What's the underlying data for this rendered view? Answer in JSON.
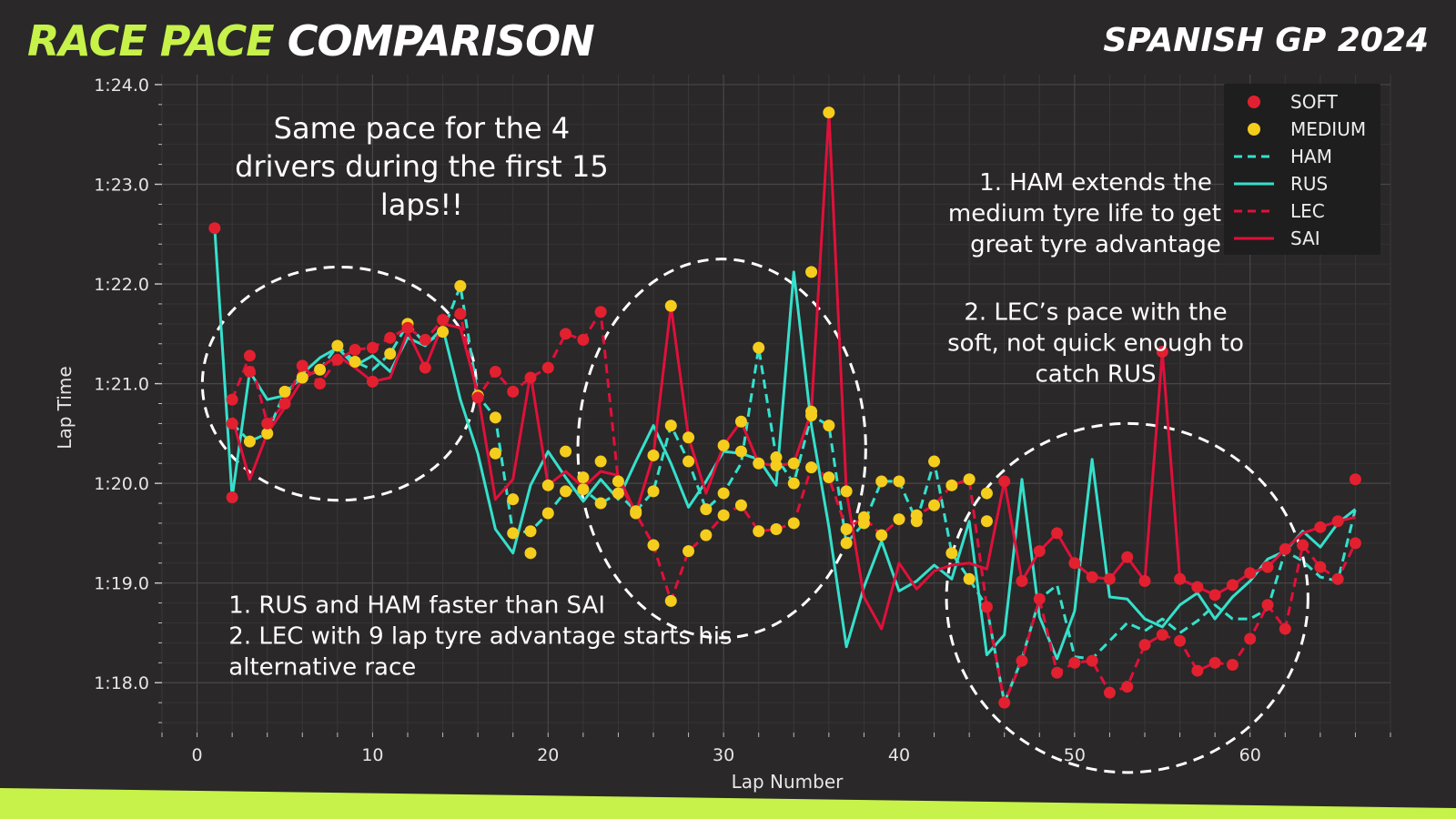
{
  "header": {
    "title_highlight": "RACE PACE",
    "title_rest": "COMPARISON",
    "subtitle": "SPANISH GP 2024"
  },
  "colors": {
    "background": "#2a2828",
    "accent": "#c6f24a",
    "soft": "#e3202f",
    "medium": "#f5cd1c",
    "mercedes": "#35e0cc",
    "ferrari": "#e0103a"
  },
  "chart_data": {
    "type": "line",
    "xlabel": "Lap Number",
    "ylabel": "Lap Time",
    "xlim": [
      -2,
      68
    ],
    "ylim": [
      77.5,
      84.1
    ],
    "xticks": [
      0,
      10,
      20,
      30,
      40,
      50,
      60
    ],
    "yticks": [
      78,
      79,
      80,
      81,
      82,
      83,
      84
    ],
    "ytick_labels": [
      "1:18.0",
      "1:19.0",
      "1:20.0",
      "1:21.0",
      "1:22.0",
      "1:23.0",
      "1:24.0"
    ],
    "grid": true,
    "legend_placement": "top-right",
    "legend": [
      {
        "label": "SOFT",
        "kind": "marker",
        "color": "#e3202f"
      },
      {
        "label": "MEDIUM",
        "kind": "marker",
        "color": "#f5cd1c"
      },
      {
        "label": "HAM",
        "kind": "dashed",
        "color": "#35e0cc"
      },
      {
        "label": "RUS",
        "kind": "solid",
        "color": "#35e0cc"
      },
      {
        "label": "LEC",
        "kind": "dashed",
        "color": "#e0103a"
      },
      {
        "label": "SAI",
        "kind": "solid",
        "color": "#e0103a"
      }
    ],
    "series": [
      {
        "name": "HAM",
        "color": "#35e0cc",
        "dash": true,
        "x": [
          2,
          3,
          4,
          5,
          6,
          7,
          8,
          9,
          10,
          11,
          12,
          13,
          14,
          15,
          16,
          17,
          18,
          19,
          20,
          21,
          22,
          23,
          24,
          25,
          26,
          27,
          28,
          29,
          30,
          31,
          32,
          33,
          34,
          35,
          36,
          37,
          38,
          39,
          40,
          41,
          42,
          43,
          44,
          45,
          46,
          47,
          48,
          49,
          50,
          51,
          52,
          53,
          54,
          55,
          56,
          57,
          58,
          59,
          60,
          61,
          62,
          63,
          64,
          65,
          66
        ],
        "y": [
          80.6,
          80.42,
          80.5,
          80.92,
          81.06,
          81.14,
          81.38,
          81.22,
          81.14,
          81.3,
          81.6,
          81.4,
          81.52,
          81.98,
          80.88,
          80.66,
          79.5,
          79.52,
          79.7,
          79.92,
          79.94,
          79.8,
          79.9,
          79.72,
          79.92,
          80.58,
          80.22,
          79.74,
          79.9,
          80.2,
          81.36,
          80.26,
          80.0,
          80.68,
          80.58,
          79.4,
          79.6,
          80.02,
          80.02,
          79.62,
          80.22,
          79.3,
          79.04,
          78.76,
          77.8,
          78.24,
          78.84,
          78.98,
          78.26,
          78.24,
          78.42,
          78.6,
          78.52,
          78.64,
          78.5,
          78.62,
          78.78,
          78.64,
          78.64,
          78.74,
          79.32,
          79.22,
          79.06,
          79.02,
          79.74
        ]
      },
      {
        "name": "RUS",
        "color": "#35e0cc",
        "dash": false,
        "x": [
          1,
          2,
          3,
          4,
          5,
          6,
          7,
          8,
          9,
          10,
          11,
          12,
          13,
          14,
          15,
          16,
          17,
          18,
          19,
          20,
          21,
          22,
          23,
          24,
          25,
          26,
          27,
          28,
          29,
          30,
          31,
          32,
          33,
          34,
          35,
          36,
          37,
          38,
          39,
          40,
          41,
          42,
          43,
          44,
          45,
          46,
          47,
          48,
          49,
          50,
          51,
          52,
          53,
          54,
          55,
          56,
          57,
          58,
          59,
          60,
          61,
          62,
          63,
          64,
          65,
          66
        ],
        "y": [
          82.56,
          79.86,
          81.12,
          80.84,
          80.88,
          81.1,
          81.26,
          81.36,
          81.18,
          81.28,
          81.12,
          81.46,
          81.38,
          81.56,
          80.84,
          80.3,
          79.54,
          79.3,
          79.98,
          80.32,
          80.06,
          79.82,
          80.04,
          79.84,
          80.22,
          80.58,
          80.2,
          79.76,
          80.02,
          80.32,
          80.3,
          80.24,
          79.98,
          82.12,
          80.58,
          79.56,
          78.36,
          78.96,
          79.42,
          78.92,
          79.02,
          79.18,
          79.04,
          79.62,
          78.28,
          78.48,
          80.04,
          78.66,
          78.24,
          78.72,
          80.24,
          78.86,
          78.84,
          78.64,
          78.56,
          78.78,
          78.9,
          78.64,
          78.86,
          79.02,
          79.24,
          79.32,
          79.52,
          79.36,
          79.6,
          79.74
        ]
      },
      {
        "name": "LEC",
        "color": "#e0103a",
        "dash": true,
        "x": [
          2,
          3,
          4,
          5,
          6,
          7,
          8,
          9,
          10,
          11,
          12,
          13,
          14,
          15,
          16,
          17,
          18,
          19,
          20,
          21,
          22,
          23,
          24,
          25,
          26,
          27,
          28,
          29,
          30,
          31,
          32,
          33,
          34,
          35,
          36,
          37,
          38,
          39,
          40,
          41,
          42,
          43,
          44,
          45,
          46,
          47,
          48,
          49,
          50,
          51,
          52,
          53,
          54,
          55,
          56,
          57,
          58,
          59,
          60,
          61,
          62,
          63,
          64,
          65,
          66
        ],
        "y": [
          80.84,
          81.28,
          80.6,
          80.8,
          81.18,
          81.0,
          81.24,
          81.34,
          81.36,
          81.46,
          81.56,
          81.44,
          81.64,
          81.7,
          80.86,
          81.12,
          80.92,
          81.06,
          81.16,
          81.5,
          81.44,
          81.72,
          80.02,
          79.7,
          79.38,
          78.82,
          79.32,
          79.48,
          79.68,
          79.78,
          79.52,
          79.54,
          79.6,
          80.16,
          80.06,
          79.54,
          79.66,
          79.48,
          79.64,
          79.68,
          79.78,
          79.98,
          80.04,
          78.76,
          77.8,
          78.22,
          78.84,
          78.1,
          78.2,
          78.22,
          77.9,
          77.96,
          78.38,
          78.48,
          78.42,
          78.12,
          78.2,
          78.18,
          78.44,
          78.78,
          78.54,
          79.38,
          79.16,
          79.04,
          79.4
        ]
      },
      {
        "name": "SAI",
        "color": "#e0103a",
        "dash": false,
        "x": [
          2,
          3,
          4,
          5,
          6,
          7,
          8,
          9,
          10,
          11,
          12,
          13,
          14,
          15,
          16,
          17,
          18,
          19,
          20,
          21,
          22,
          23,
          24,
          25,
          26,
          27,
          28,
          29,
          30,
          31,
          32,
          33,
          34,
          35,
          36,
          37,
          38,
          39,
          40,
          41,
          42,
          43,
          44,
          45,
          46,
          47,
          48,
          49,
          50,
          51,
          52,
          53,
          54,
          55,
          56,
          57,
          58,
          59,
          60,
          61,
          62,
          63,
          64,
          65,
          66
        ],
        "y": [
          80.66,
          80.04,
          80.5,
          80.76,
          81.04,
          81.16,
          81.28,
          81.16,
          81.02,
          81.06,
          81.52,
          81.16,
          81.6,
          81.56,
          80.9,
          79.84,
          80.04,
          81.1,
          79.98,
          80.12,
          79.96,
          80.12,
          80.08,
          79.7,
          80.28,
          81.78,
          80.46,
          79.9,
          80.38,
          80.62,
          80.2,
          80.18,
          80.2,
          80.72,
          83.72,
          79.92,
          78.86,
          78.54,
          79.2,
          78.94,
          79.12,
          79.18,
          79.2,
          79.14,
          80.02,
          79.02,
          79.32,
          79.5,
          79.2,
          79.06,
          79.04,
          79.26,
          79.02,
          81.32,
          79.04,
          78.96,
          78.88,
          78.98,
          79.1,
          79.16,
          79.34,
          79.5,
          79.56,
          79.62,
          79.66
        ]
      }
    ],
    "soft_points": [
      [
        1,
        82.56
      ],
      [
        2,
        79.86
      ],
      [
        2,
        80.84
      ],
      [
        2,
        80.6
      ],
      [
        3,
        81.28
      ],
      [
        3,
        81.12
      ],
      [
        4,
        80.6
      ],
      [
        5,
        80.8
      ],
      [
        6,
        81.18
      ],
      [
        7,
        81.0
      ],
      [
        8,
        81.24
      ],
      [
        9,
        81.34
      ],
      [
        10,
        81.36
      ],
      [
        10,
        81.02
      ],
      [
        11,
        81.46
      ],
      [
        12,
        81.56
      ],
      [
        13,
        81.44
      ],
      [
        13,
        81.16
      ],
      [
        14,
        81.64
      ],
      [
        15,
        81.7
      ],
      [
        16,
        80.86
      ],
      [
        17,
        81.12
      ],
      [
        18,
        80.92
      ],
      [
        19,
        81.06
      ],
      [
        20,
        81.16
      ],
      [
        21,
        81.5
      ],
      [
        22,
        81.44
      ],
      [
        23,
        81.72
      ],
      [
        45,
        78.76
      ],
      [
        46,
        77.8
      ],
      [
        46,
        80.02
      ],
      [
        47,
        78.22
      ],
      [
        47,
        79.02
      ],
      [
        48,
        78.84
      ],
      [
        48,
        79.32
      ],
      [
        49,
        78.1
      ],
      [
        49,
        79.5
      ],
      [
        50,
        78.2
      ],
      [
        50,
        79.2
      ],
      [
        51,
        78.22
      ],
      [
        51,
        79.06
      ],
      [
        52,
        77.9
      ],
      [
        52,
        79.04
      ],
      [
        53,
        77.96
      ],
      [
        53,
        79.26
      ],
      [
        54,
        78.38
      ],
      [
        54,
        79.02
      ],
      [
        55,
        78.48
      ],
      [
        55,
        81.32
      ],
      [
        56,
        78.42
      ],
      [
        56,
        79.04
      ],
      [
        57,
        78.12
      ],
      [
        57,
        78.96
      ],
      [
        58,
        78.2
      ],
      [
        58,
        78.88
      ],
      [
        59,
        78.18
      ],
      [
        59,
        78.98
      ],
      [
        60,
        78.44
      ],
      [
        60,
        79.1
      ],
      [
        61,
        78.78
      ],
      [
        61,
        79.16
      ],
      [
        62,
        78.54
      ],
      [
        62,
        79.34
      ],
      [
        63,
        79.38
      ],
      [
        64,
        79.16
      ],
      [
        64,
        79.56
      ],
      [
        65,
        79.04
      ],
      [
        65,
        79.62
      ],
      [
        66,
        79.4
      ],
      [
        66,
        80.04
      ]
    ],
    "medium_points": [
      [
        3,
        80.42
      ],
      [
        4,
        80.5
      ],
      [
        5,
        80.92
      ],
      [
        6,
        81.06
      ],
      [
        7,
        81.14
      ],
      [
        8,
        81.38
      ],
      [
        9,
        81.22
      ],
      [
        11,
        81.3
      ],
      [
        12,
        81.6
      ],
      [
        14,
        81.52
      ],
      [
        15,
        81.98
      ],
      [
        16,
        80.88
      ],
      [
        17,
        80.66
      ],
      [
        17,
        80.3
      ],
      [
        18,
        79.5
      ],
      [
        18,
        79.84
      ],
      [
        19,
        79.52
      ],
      [
        19,
        79.3
      ],
      [
        20,
        79.7
      ],
      [
        20,
        79.98
      ],
      [
        21,
        79.92
      ],
      [
        21,
        80.32
      ],
      [
        22,
        79.94
      ],
      [
        22,
        80.06
      ],
      [
        23,
        79.8
      ],
      [
        23,
        80.22
      ],
      [
        24,
        79.9
      ],
      [
        24,
        80.02
      ],
      [
        25,
        79.72
      ],
      [
        25,
        79.7
      ],
      [
        26,
        79.92
      ],
      [
        26,
        80.28
      ],
      [
        26,
        79.38
      ],
      [
        27,
        80.58
      ],
      [
        27,
        78.82
      ],
      [
        27,
        81.78
      ],
      [
        28,
        80.22
      ],
      [
        28,
        79.32
      ],
      [
        28,
        80.46
      ],
      [
        29,
        79.74
      ],
      [
        29,
        79.48
      ],
      [
        30,
        79.9
      ],
      [
        30,
        79.68
      ],
      [
        30,
        80.38
      ],
      [
        31,
        80.32
      ],
      [
        31,
        79.78
      ],
      [
        31,
        80.62
      ],
      [
        32,
        81.36
      ],
      [
        32,
        79.52
      ],
      [
        32,
        80.2
      ],
      [
        33,
        80.26
      ],
      [
        33,
        79.54
      ],
      [
        33,
        80.18
      ],
      [
        34,
        80.0
      ],
      [
        34,
        79.6
      ],
      [
        34,
        80.2
      ],
      [
        35,
        80.68
      ],
      [
        35,
        82.12
      ],
      [
        35,
        80.16
      ],
      [
        35,
        80.72
      ],
      [
        36,
        80.58
      ],
      [
        36,
        80.06
      ],
      [
        36,
        83.72
      ],
      [
        37,
        79.4
      ],
      [
        37,
        79.54
      ],
      [
        37,
        79.92
      ],
      [
        38,
        79.6
      ],
      [
        38,
        79.66
      ],
      [
        39,
        80.02
      ],
      [
        39,
        79.48
      ],
      [
        40,
        80.02
      ],
      [
        40,
        79.64
      ],
      [
        41,
        79.62
      ],
      [
        41,
        79.68
      ],
      [
        42,
        80.22
      ],
      [
        42,
        79.78
      ],
      [
        43,
        79.3
      ],
      [
        43,
        79.98
      ],
      [
        44,
        79.04
      ],
      [
        44,
        80.04
      ],
      [
        45,
        79.62
      ],
      [
        45,
        79.9
      ]
    ],
    "annotations": [
      {
        "id": "a1",
        "lines": [
          "Same pace for the 4",
          "drivers during the first 15",
          "laps!!"
        ],
        "anchor": "middle",
        "x": 12.8,
        "y": 83.46
      },
      {
        "id": "a2",
        "lines": [
          "1. HAM extends the",
          "medium tyre life to get a",
          "great tyre advantage"
        ],
        "anchor": "middle",
        "x": 51.2,
        "y": 82.94
      },
      {
        "id": "a3",
        "lines": [
          "2. LEC’s pace with the",
          "soft, not quick enough to",
          "catch RUS"
        ],
        "anchor": "middle",
        "x": 51.2,
        "y": 81.64
      },
      {
        "id": "a4",
        "lines": [
          "1. RUS and HAM faster than SAI",
          "",
          "2. LEC with 9 lap tyre advantage starts his",
          "alternative race"
        ],
        "anchor": "start",
        "x": 1.8,
        "y": 78.7
      }
    ],
    "ellipses": [
      {
        "cx": 8.1,
        "cy": 81.0,
        "rx": 7.8,
        "ry": 1.17
      },
      {
        "cx": 29.9,
        "cy": 80.35,
        "rx": 8.2,
        "ry": 1.9
      },
      {
        "cx": 53.0,
        "cy": 78.85,
        "rx": 10.3,
        "ry": 1.75
      }
    ]
  }
}
